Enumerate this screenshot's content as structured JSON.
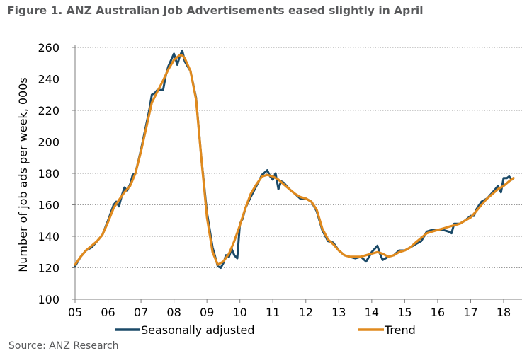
{
  "title": "Figure 1. ANZ Australian Job Advertisements eased slightly in April",
  "source": "Source: ANZ Research",
  "chart_data": {
    "type": "line",
    "ylabel": "Number of job ads per week, 000s",
    "ylim": [
      100,
      260
    ],
    "yticks": [
      "100",
      "120",
      "140",
      "160",
      "180",
      "200",
      "220",
      "240",
      "260"
    ],
    "xlim": [
      2005,
      2018.35
    ],
    "xticks": [
      "05",
      "06",
      "07",
      "08",
      "09",
      "10",
      "11",
      "12",
      "13",
      "14",
      "15",
      "16",
      "17",
      "18"
    ],
    "grid": "horizontal dotted",
    "legend_position": "bottom",
    "series": [
      {
        "name": "Seasonally adjusted",
        "color": "#1b4a68",
        "x": [
          2005.0,
          2005.17,
          2005.33,
          2005.5,
          2005.67,
          2005.83,
          2006.0,
          2006.17,
          2006.25,
          2006.33,
          2006.42,
          2006.5,
          2006.58,
          2006.67,
          2006.75,
          2006.83,
          2007.0,
          2007.17,
          2007.25,
          2007.33,
          2007.42,
          2007.5,
          2007.67,
          2007.75,
          2007.83,
          2008.0,
          2008.1,
          2008.17,
          2008.25,
          2008.33,
          2008.5,
          2008.67,
          2008.83,
          2009.0,
          2009.17,
          2009.33,
          2009.42,
          2009.5,
          2009.58,
          2009.67,
          2009.75,
          2009.83,
          2009.92,
          2010.0,
          2010.08,
          2010.17,
          2010.33,
          2010.5,
          2010.67,
          2010.83,
          2010.92,
          2011.0,
          2011.08,
          2011.17,
          2011.25,
          2011.33,
          2011.5,
          2011.67,
          2011.83,
          2012.0,
          2012.17,
          2012.33,
          2012.5,
          2012.67,
          2012.83,
          2013.0,
          2013.17,
          2013.33,
          2013.5,
          2013.67,
          2013.83,
          2013.92,
          2014.0,
          2014.17,
          2014.25,
          2014.33,
          2014.42,
          2014.5,
          2014.67,
          2014.83,
          2015.0,
          2015.17,
          2015.33,
          2015.5,
          2015.67,
          2015.83,
          2016.0,
          2016.17,
          2016.33,
          2016.42,
          2016.5,
          2016.67,
          2016.83,
          2017.0,
          2017.1,
          2017.17,
          2017.33,
          2017.5,
          2017.67,
          2017.83,
          2017.92,
          2018.0,
          2018.1,
          2018.17,
          2018.25,
          2018.3
        ],
        "values": [
          121,
          127,
          131,
          133,
          137,
          141,
          150,
          160,
          162,
          159,
          166,
          171,
          169,
          173,
          179,
          180,
          195,
          212,
          220,
          230,
          231,
          233,
          233,
          242,
          248,
          256,
          249,
          254,
          258,
          251,
          245,
          228,
          190,
          155,
          133,
          121,
          120,
          123,
          128,
          127,
          132,
          128,
          126,
          148,
          151,
          158,
          165,
          172,
          179,
          182,
          178,
          176,
          180,
          170,
          175,
          174,
          170,
          167,
          164,
          164,
          162,
          156,
          144,
          137,
          136,
          131,
          128,
          127,
          126,
          127,
          124,
          127,
          130,
          134,
          129,
          125,
          126,
          127,
          128,
          131,
          131,
          133,
          135,
          137,
          143,
          144,
          144,
          144,
          143,
          142,
          148,
          148,
          150,
          153,
          153,
          157,
          162,
          164,
          168,
          172,
          168,
          177,
          177,
          178,
          176,
          177
        ]
      },
      {
        "name": "Trend",
        "color": "#e08a1e",
        "x": [
          2005.0,
          2005.17,
          2005.33,
          2005.5,
          2005.67,
          2005.83,
          2006.0,
          2006.17,
          2006.33,
          2006.5,
          2006.67,
          2006.83,
          2007.0,
          2007.17,
          2007.33,
          2007.5,
          2007.67,
          2007.83,
          2008.0,
          2008.17,
          2008.25,
          2008.33,
          2008.5,
          2008.67,
          2008.83,
          2009.0,
          2009.17,
          2009.33,
          2009.5,
          2009.67,
          2009.83,
          2010.0,
          2010.17,
          2010.33,
          2010.5,
          2010.67,
          2010.83,
          2011.0,
          2011.17,
          2011.33,
          2011.5,
          2011.67,
          2011.83,
          2012.0,
          2012.17,
          2012.33,
          2012.5,
          2012.67,
          2012.83,
          2013.0,
          2013.17,
          2013.33,
          2013.5,
          2013.67,
          2013.83,
          2014.0,
          2014.17,
          2014.33,
          2014.5,
          2014.67,
          2014.83,
          2015.0,
          2015.17,
          2015.33,
          2015.5,
          2015.67,
          2015.83,
          2016.0,
          2016.17,
          2016.33,
          2016.5,
          2016.67,
          2016.83,
          2017.0,
          2017.17,
          2017.33,
          2017.5,
          2017.67,
          2017.83,
          2018.0,
          2018.17,
          2018.3
        ],
        "values": [
          122,
          127,
          131,
          134,
          137,
          141,
          149,
          158,
          163,
          168,
          172,
          180,
          194,
          210,
          225,
          232,
          239,
          246,
          252,
          255,
          255,
          253,
          245,
          227,
          190,
          152,
          130,
          122,
          124,
          129,
          137,
          147,
          158,
          167,
          173,
          178,
          179,
          178,
          176,
          173,
          170,
          167,
          165,
          164,
          162,
          157,
          145,
          138,
          135,
          131,
          128,
          127,
          127,
          127,
          128,
          129,
          130,
          129,
          127,
          128,
          130,
          131,
          133,
          136,
          139,
          142,
          143,
          144,
          145,
          146,
          147,
          148,
          150,
          152,
          156,
          160,
          164,
          167,
          170,
          172,
          175,
          177
        ]
      }
    ]
  }
}
